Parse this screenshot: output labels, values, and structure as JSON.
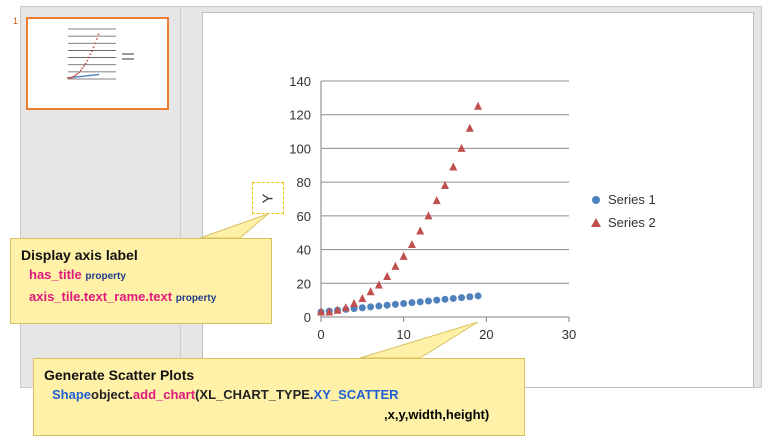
{
  "thumbnail": {
    "slide_number": "1"
  },
  "chart_data": {
    "type": "scatter",
    "title": "",
    "xlabel": "",
    "ylabel": "Y",
    "xlim": [
      0,
      30
    ],
    "ylim": [
      0,
      140
    ],
    "xticks": [
      "0",
      "10",
      "20",
      "30"
    ],
    "yticks": [
      "0",
      "20",
      "40",
      "60",
      "80",
      "100",
      "120",
      "140"
    ],
    "grid": true,
    "legend_position": "right",
    "series": [
      {
        "name": "Series 1",
        "color": "#4f81bd",
        "marker": "circle",
        "x": [
          0,
          1,
          2,
          3,
          4,
          5,
          6,
          7,
          8,
          9,
          10,
          11,
          12,
          13,
          14,
          15,
          16,
          17,
          18,
          19
        ],
        "y": [
          3,
          3.5,
          4,
          4.5,
          5,
          5.5,
          6,
          6.5,
          7,
          7.5,
          8,
          8.5,
          9,
          9.5,
          10,
          10.5,
          11,
          11.5,
          12,
          12.5
        ]
      },
      {
        "name": "Series 2",
        "color": "#c0504d",
        "marker": "triangle",
        "x": [
          0,
          1,
          2,
          3,
          4,
          5,
          6,
          7,
          8,
          9,
          10,
          11,
          12,
          13,
          14,
          15,
          16,
          17,
          18,
          19
        ],
        "y": [
          3,
          3,
          4,
          5.5,
          8,
          11,
          15,
          19,
          24,
          30,
          36,
          43,
          51,
          60,
          69,
          78,
          89,
          100,
          112,
          125
        ]
      }
    ]
  },
  "callout_axis": {
    "title": "Display axis label",
    "line1_code": "has_title",
    "line1_suffix": "property",
    "line2_code": "axis_tile.text_rame.text",
    "line2_suffix": "property"
  },
  "callout_scatter": {
    "title": "Generate Scatter Plots",
    "part1": "Shape",
    "part2": "object.",
    "part3": "add_chart",
    "part4": "(XL_CHART_TYPE.",
    "part5": "XY_SCATTER",
    "line2": ",x,y,width,height)"
  }
}
